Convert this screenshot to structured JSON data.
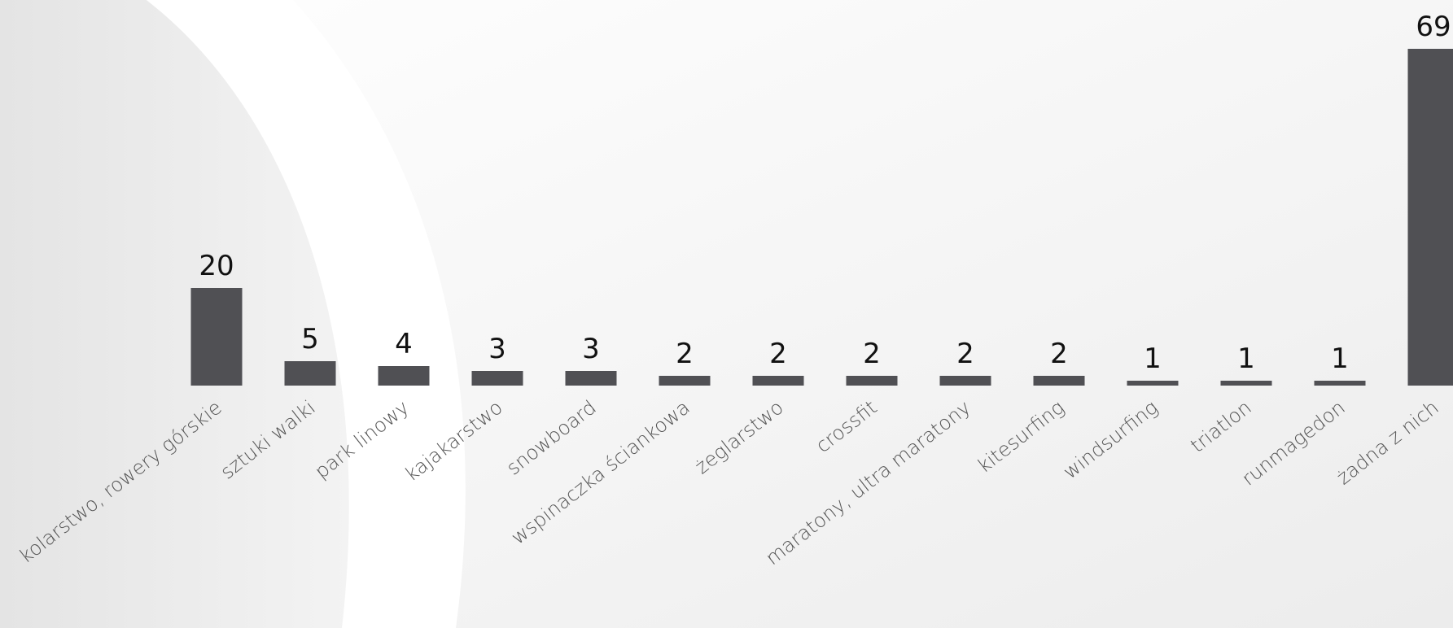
{
  "chart_data": {
    "type": "bar",
    "categories": [
      "kolarstwo, rowery górskie",
      "sztuki walki",
      "park linowy",
      "kajakarstwo",
      "snowboard",
      "wspinaczka ściankowa",
      "żeglarstwo",
      "crossfit",
      "maratony, ultra maratony",
      "kitesurfing",
      "windsurfing",
      "triatlon",
      "runmagedon",
      "żadna z nich"
    ],
    "values": [
      20,
      5,
      4,
      3,
      3,
      2,
      2,
      2,
      2,
      2,
      1,
      1,
      1,
      69
    ],
    "data_labels": [
      "20",
      "5",
      "4",
      "3",
      "3",
      "2",
      "2",
      "2",
      "2",
      "2",
      "1",
      "1",
      "1",
      "69"
    ],
    "title": "",
    "xlabel": "",
    "ylabel": "",
    "ylim": [
      0,
      69
    ],
    "grid": false,
    "legend": "none",
    "bar_color": "#505054"
  }
}
